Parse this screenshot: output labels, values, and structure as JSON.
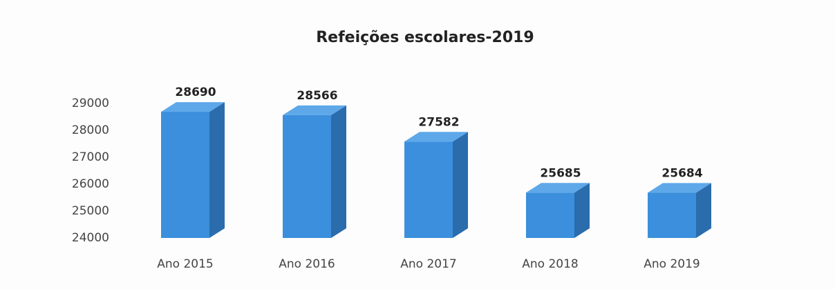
{
  "chart_data": {
    "type": "bar",
    "title": "Refeições escolares-2019",
    "categories": [
      "Ano 2015",
      "Ano 2016",
      "Ano 2017",
      "Ano 2018",
      "Ano 2019"
    ],
    "values": [
      28690,
      28566,
      27582,
      25685,
      25684
    ],
    "color": "#3b8fdc",
    "ylim": [
      24000,
      29000
    ],
    "yticks": [
      24000,
      25000,
      26000,
      27000,
      28000,
      29000
    ],
    "grid": false
  }
}
